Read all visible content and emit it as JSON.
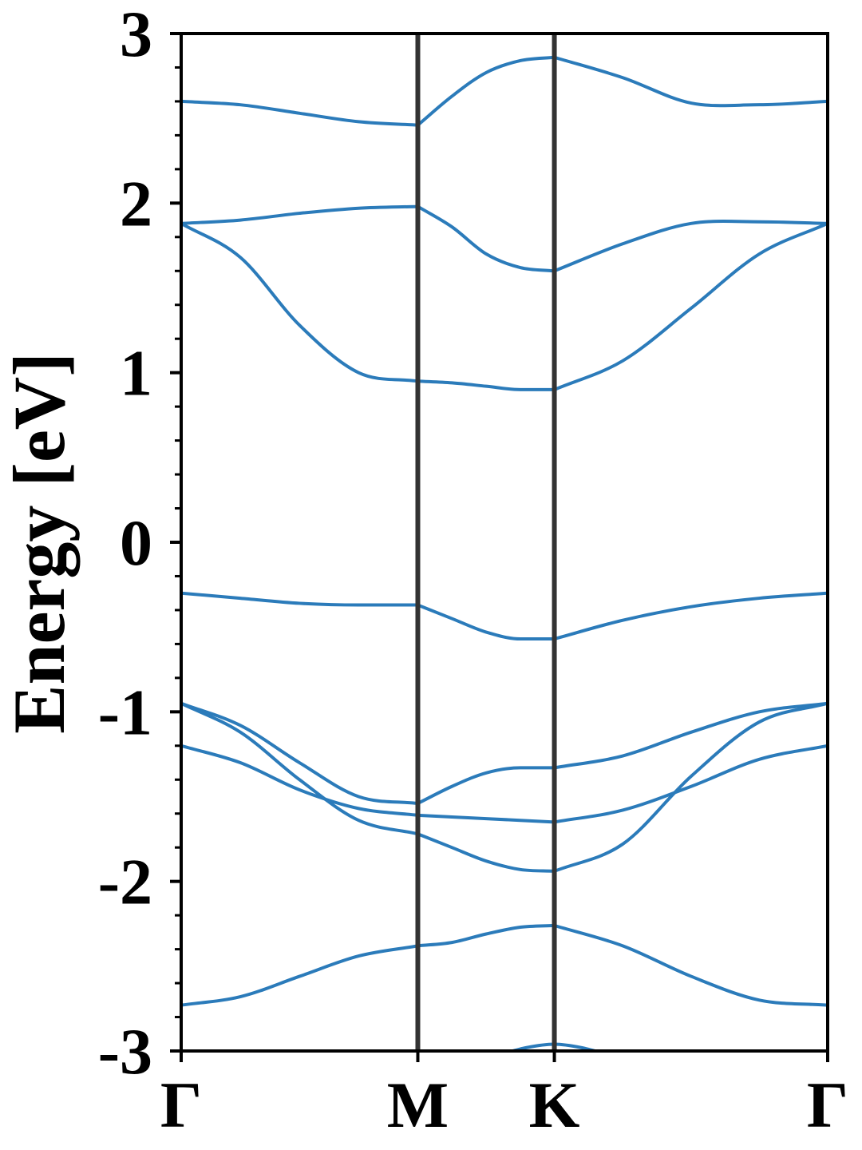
{
  "chart_data": {
    "type": "line",
    "title": "",
    "ylabel": "Energy [eV]",
    "xlabel": "",
    "ylim": [
      -3,
      3
    ],
    "yticks": [
      -3,
      -2,
      -1,
      0,
      1,
      2,
      3
    ],
    "ytick_labels": [
      "-3",
      "-2",
      "-1",
      "0",
      "1",
      "2",
      "3"
    ],
    "minor_ytick_step": 0.2,
    "x_range": [
      0,
      2.732
    ],
    "high_symmetry_points": [
      {
        "label": "Γ",
        "x": 0
      },
      {
        "label": "M",
        "x": 1.0
      },
      {
        "label": "K",
        "x": 1.577
      },
      {
        "label": "Γ",
        "x": 2.732
      }
    ],
    "grid": false,
    "line_color": "#2b7bba",
    "vline_color": "#333333",
    "series": [
      {
        "x": [
          0,
          0.25,
          0.5,
          0.75,
          1.0
        ],
        "y": [
          2.6,
          2.58,
          2.53,
          2.48,
          2.46
        ]
      },
      {
        "x": [
          1.0,
          1.144,
          1.289,
          1.433,
          1.577
        ],
        "y": [
          2.46,
          2.63,
          2.77,
          2.84,
          2.86
        ]
      },
      {
        "x": [
          1.577,
          1.866,
          2.155,
          2.443,
          2.732
        ],
        "y": [
          2.86,
          2.74,
          2.59,
          2.58,
          2.6
        ]
      },
      {
        "x": [
          0,
          0.25,
          0.5,
          0.75,
          1.0
        ],
        "y": [
          1.88,
          1.9,
          1.94,
          1.97,
          1.98
        ]
      },
      {
        "x": [
          1.0,
          1.144,
          1.289,
          1.433,
          1.577
        ],
        "y": [
          1.98,
          1.86,
          1.7,
          1.62,
          1.6
        ]
      },
      {
        "x": [
          1.577,
          1.866,
          2.155,
          2.443,
          2.732
        ],
        "y": [
          1.6,
          1.76,
          1.88,
          1.89,
          1.88
        ]
      },
      {
        "x": [
          0,
          0.25,
          0.5,
          0.75,
          1.0
        ],
        "y": [
          1.88,
          1.68,
          1.28,
          1.0,
          0.95
        ]
      },
      {
        "x": [
          1.0,
          1.144,
          1.289,
          1.433,
          1.577
        ],
        "y": [
          0.95,
          0.94,
          0.92,
          0.9,
          0.9
        ]
      },
      {
        "x": [
          1.577,
          1.866,
          2.155,
          2.443,
          2.732
        ],
        "y": [
          0.9,
          1.07,
          1.38,
          1.7,
          1.88
        ]
      },
      {
        "x": [
          0,
          0.25,
          0.5,
          0.75,
          1.0
        ],
        "y": [
          -0.3,
          -0.33,
          -0.36,
          -0.37,
          -0.37
        ]
      },
      {
        "x": [
          1.0,
          1.144,
          1.289,
          1.433,
          1.577
        ],
        "y": [
          -0.37,
          -0.45,
          -0.53,
          -0.57,
          -0.57
        ]
      },
      {
        "x": [
          1.577,
          1.866,
          2.155,
          2.443,
          2.732
        ],
        "y": [
          -0.57,
          -0.46,
          -0.38,
          -0.33,
          -0.3
        ]
      },
      {
        "x": [
          0,
          0.25,
          0.5,
          0.75,
          1.0
        ],
        "y": [
          -0.95,
          -1.08,
          -1.3,
          -1.5,
          -1.54
        ]
      },
      {
        "x": [
          1.0,
          1.144,
          1.289,
          1.433,
          1.577
        ],
        "y": [
          -1.54,
          -1.44,
          -1.36,
          -1.33,
          -1.33
        ]
      },
      {
        "x": [
          1.577,
          1.866,
          2.155,
          2.443,
          2.732
        ],
        "y": [
          -1.33,
          -1.26,
          -1.12,
          -1.0,
          -0.95
        ]
      },
      {
        "x": [
          0,
          0.25,
          0.5,
          0.75,
          1.0
        ],
        "y": [
          -0.95,
          -1.12,
          -1.4,
          -1.64,
          -1.72
        ]
      },
      {
        "x": [
          1.0,
          1.144,
          1.289,
          1.433,
          1.577
        ],
        "y": [
          -1.72,
          -1.8,
          -1.88,
          -1.93,
          -1.94
        ]
      },
      {
        "x": [
          1.577,
          1.866,
          2.155,
          2.443,
          2.732
        ],
        "y": [
          -1.94,
          -1.78,
          -1.38,
          -1.06,
          -0.95
        ]
      },
      {
        "x": [
          0,
          0.25,
          0.5,
          0.75,
          1.0
        ],
        "y": [
          -1.2,
          -1.3,
          -1.46,
          -1.57,
          -1.61
        ]
      },
      {
        "x": [
          1.0,
          1.144,
          1.289,
          1.433,
          1.577
        ],
        "y": [
          -1.61,
          -1.62,
          -1.63,
          -1.64,
          -1.65
        ]
      },
      {
        "x": [
          1.577,
          1.866,
          2.155,
          2.443,
          2.732
        ],
        "y": [
          -1.65,
          -1.58,
          -1.44,
          -1.28,
          -1.2
        ]
      },
      {
        "x": [
          0,
          0.25,
          0.5,
          0.75,
          1.0
        ],
        "y": [
          -2.73,
          -2.68,
          -2.56,
          -2.44,
          -2.38
        ]
      },
      {
        "x": [
          1.0,
          1.144,
          1.289,
          1.433,
          1.577
        ],
        "y": [
          -2.38,
          -2.36,
          -2.31,
          -2.27,
          -2.26
        ]
      },
      {
        "x": [
          1.577,
          1.866,
          2.155,
          2.443,
          2.732
        ],
        "y": [
          -2.26,
          -2.38,
          -2.56,
          -2.7,
          -2.73
        ]
      },
      {
        "x": [
          1.35,
          1.46,
          1.577,
          1.69,
          1.8
        ],
        "y": [
          -3.02,
          -2.98,
          -2.96,
          -2.98,
          -3.02
        ]
      }
    ]
  }
}
